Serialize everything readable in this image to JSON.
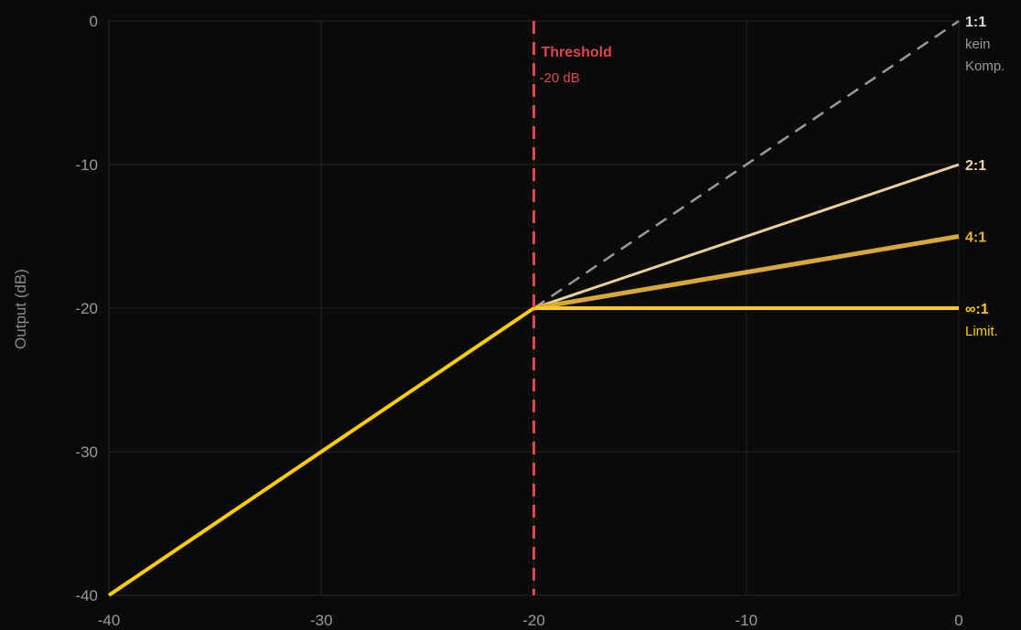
{
  "chart_data": {
    "type": "line",
    "title": "",
    "xlabel": "",
    "ylabel": "Output (dB)",
    "xlim": [
      -40,
      0
    ],
    "ylim": [
      -40,
      0
    ],
    "x_ticks": [
      -40,
      -30,
      -20,
      -10,
      0
    ],
    "y_ticks": [
      0,
      -10,
      -20,
      -30,
      -40
    ],
    "grid": true,
    "threshold": {
      "value": -20,
      "label": "Threshold",
      "value_label": "-20 dB",
      "color": "#e0464b"
    },
    "series": [
      {
        "name": "1:1",
        "sublabel": [
          "kein",
          "Komp."
        ],
        "ratio": 1,
        "x": [
          -20,
          0
        ],
        "y": [
          -20,
          0
        ],
        "color": "#9a9a9a",
        "style": "dashed",
        "label_color": "#d8d8d8",
        "sub_color": "#9a9a9a"
      },
      {
        "name": "2:1",
        "sublabel": [],
        "ratio": 2,
        "x": [
          -20,
          0
        ],
        "y": [
          -20,
          -10
        ],
        "color": "#ecd09a",
        "style": "solid",
        "label_color": "#f0d6a0",
        "sub_color": "#f0d6a0"
      },
      {
        "name": "4:1",
        "sublabel": [],
        "ratio": 4,
        "x": [
          -20,
          0
        ],
        "y": [
          -20,
          -15
        ],
        "color": "#d9a83a",
        "style": "solid",
        "label_color": "#e6b440",
        "sub_color": "#e6b440"
      },
      {
        "name": "∞:1",
        "sublabel": [
          "Limit."
        ],
        "ratio": "inf",
        "x": [
          -40,
          -20,
          0
        ],
        "y": [
          -40,
          -20,
          -20
        ],
        "color": "#ffcc00",
        "style": "solid",
        "label_color": "#ffcc00",
        "sub_color": "#ffcc00"
      }
    ]
  }
}
